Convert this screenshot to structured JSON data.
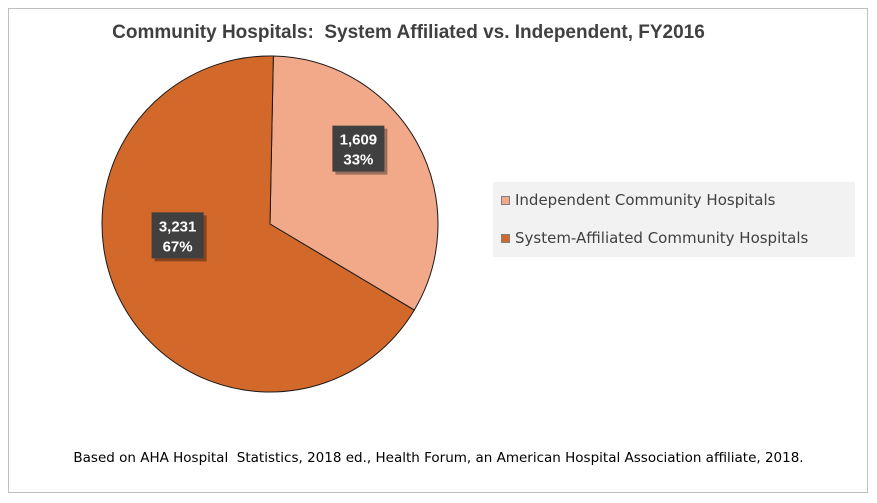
{
  "chart_data": {
    "type": "pie",
    "title": "Community Hospitals:  System Affiliated vs. Independent, FY2016",
    "slices": [
      {
        "label": "Independent Community Hospitals",
        "value": 1609,
        "percent": "33%",
        "value_label": "1,609",
        "color": "#f2a98a"
      },
      {
        "label": "System-Affiliated Community Hospitals",
        "value": 3231,
        "percent": "67%",
        "value_label": "3,231",
        "color": "#d2692a"
      }
    ],
    "legend_position": "right"
  },
  "source_note": "Based on AHA Hospital  Statistics, 2018 ed., Health Forum, an American Hospital Association affiliate, 2018."
}
